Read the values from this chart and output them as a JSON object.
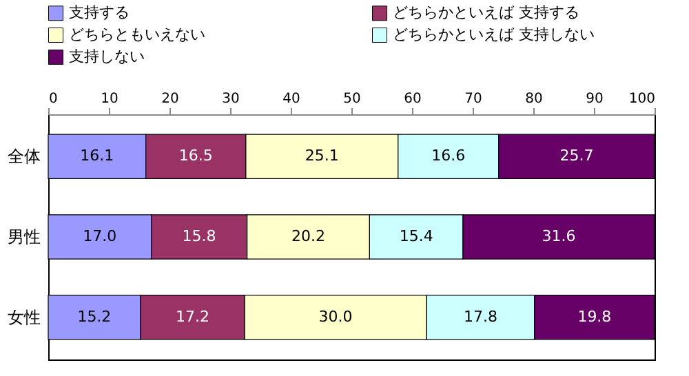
{
  "chart_data": {
    "type": "bar",
    "orientation": "horizontal",
    "stacked": true,
    "legend": "top",
    "grid": false,
    "categories": [
      "全体",
      "男性",
      "女性"
    ],
    "xlim": [
      0,
      100
    ],
    "xticks": [
      0,
      10,
      20,
      30,
      40,
      50,
      60,
      70,
      80,
      90,
      100
    ],
    "series": [
      {
        "name": "支持する",
        "color": "#9999ff",
        "values": [
          16.1,
          17.0,
          15.2
        ],
        "value_labels": [
          "16.1",
          "17.0",
          "15.2"
        ]
      },
      {
        "name": "どちらかといえば 支持する",
        "color": "#993366",
        "values": [
          16.5,
          15.8,
          17.2
        ],
        "value_labels": [
          "16.5",
          "15.8",
          "17.2"
        ]
      },
      {
        "name": "どちらともいえない",
        "color": "#ffffcc",
        "values": [
          25.1,
          20.2,
          30.0
        ],
        "value_labels": [
          "25.1",
          "20.2",
          "30.0"
        ]
      },
      {
        "name": "どちらかといえば 支持しない",
        "color": "#ccffff",
        "values": [
          16.6,
          15.4,
          17.8
        ],
        "value_labels": [
          "16.6",
          "15.4",
          "17.8"
        ]
      },
      {
        "name": "支持しない",
        "color": "#660066",
        "values": [
          25.7,
          31.6,
          19.8
        ],
        "value_labels": [
          "25.7",
          "31.6",
          "19.8"
        ]
      }
    ]
  }
}
